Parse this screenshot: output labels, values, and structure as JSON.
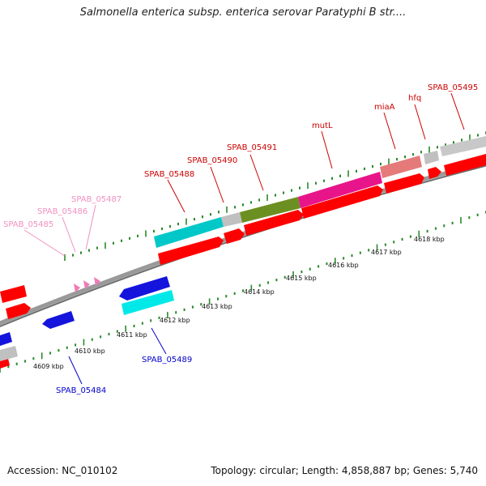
{
  "header": {
    "title": "Salmonella enterica subsp. enterica serovar Paratyphi B str...."
  },
  "footer": {
    "accession": "Accession: NC_010102",
    "summary": "Topology: circular; Length: 4,858,887 bp; Genes: 5,740"
  },
  "colors": {
    "forward_label": "#cc0000",
    "forward_faded_label": "#f090c0",
    "reverse_label": "#0000cc",
    "tick": "#2a8a2a",
    "backbone": "#808080",
    "cds_forward": "#ff0000",
    "cds_reverse": "#0000ee",
    "cyan": "#00cccc",
    "gray": "#bbbbbb",
    "olive": "#6a8f22",
    "magenta": "#ee1188",
    "salmon": "#e87070",
    "pink": "#f07ab8"
  },
  "map": {
    "kbp_labels": [
      "4609 kbp",
      "4610 kbp",
      "4611 kbp",
      "4612 kbp",
      "4613 kbp",
      "4614 kbp",
      "4615 kbp",
      "4616 kbp",
      "4617 kbp",
      "4618 kbp"
    ],
    "forward_gene_labels": [
      "SPAB_05485",
      "SPAB_05486",
      "SPAB_05487",
      "SPAB_05488",
      "SPAB_05490",
      "SPAB_05491",
      "mutL",
      "miaA",
      "hfq",
      "SPAB_05495"
    ],
    "reverse_gene_labels": [
      "SPAB_05484",
      "SPAB_05489"
    ]
  }
}
